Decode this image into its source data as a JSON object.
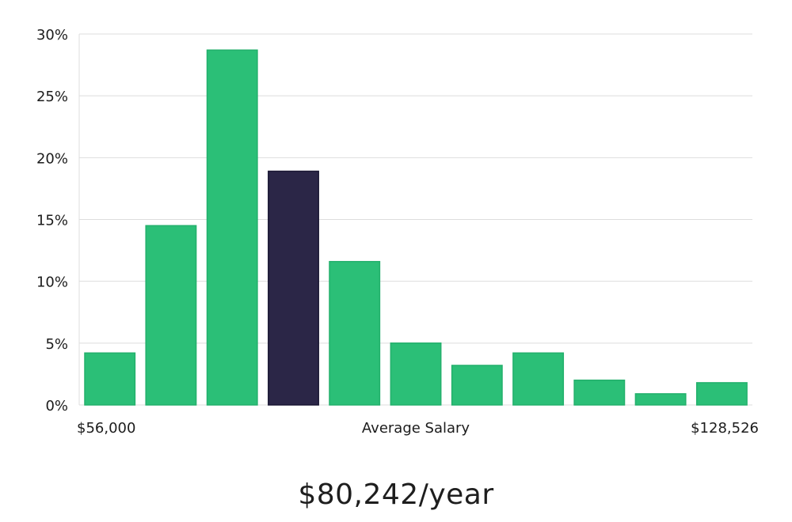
{
  "chart_data": {
    "type": "bar",
    "title": "",
    "xlabel": "Average Salary",
    "ylabel": "",
    "x_min_label": "$56,000",
    "x_max_label": "$128,526",
    "yticks": [
      "0%",
      "5%",
      "10%",
      "15%",
      "20%",
      "25%",
      "30%"
    ],
    "ylim": [
      0,
      30
    ],
    "values": [
      4.2,
      14.5,
      28.7,
      18.9,
      11.6,
      5.0,
      3.2,
      4.2,
      2.0,
      0.9,
      1.8
    ],
    "highlight_index": 3,
    "grid": true,
    "colors": {
      "bar": "#2bbf77",
      "highlight": "#2b2647",
      "grid": "#dddddd"
    }
  },
  "summary": {
    "salary_text": "$80,242/year"
  }
}
